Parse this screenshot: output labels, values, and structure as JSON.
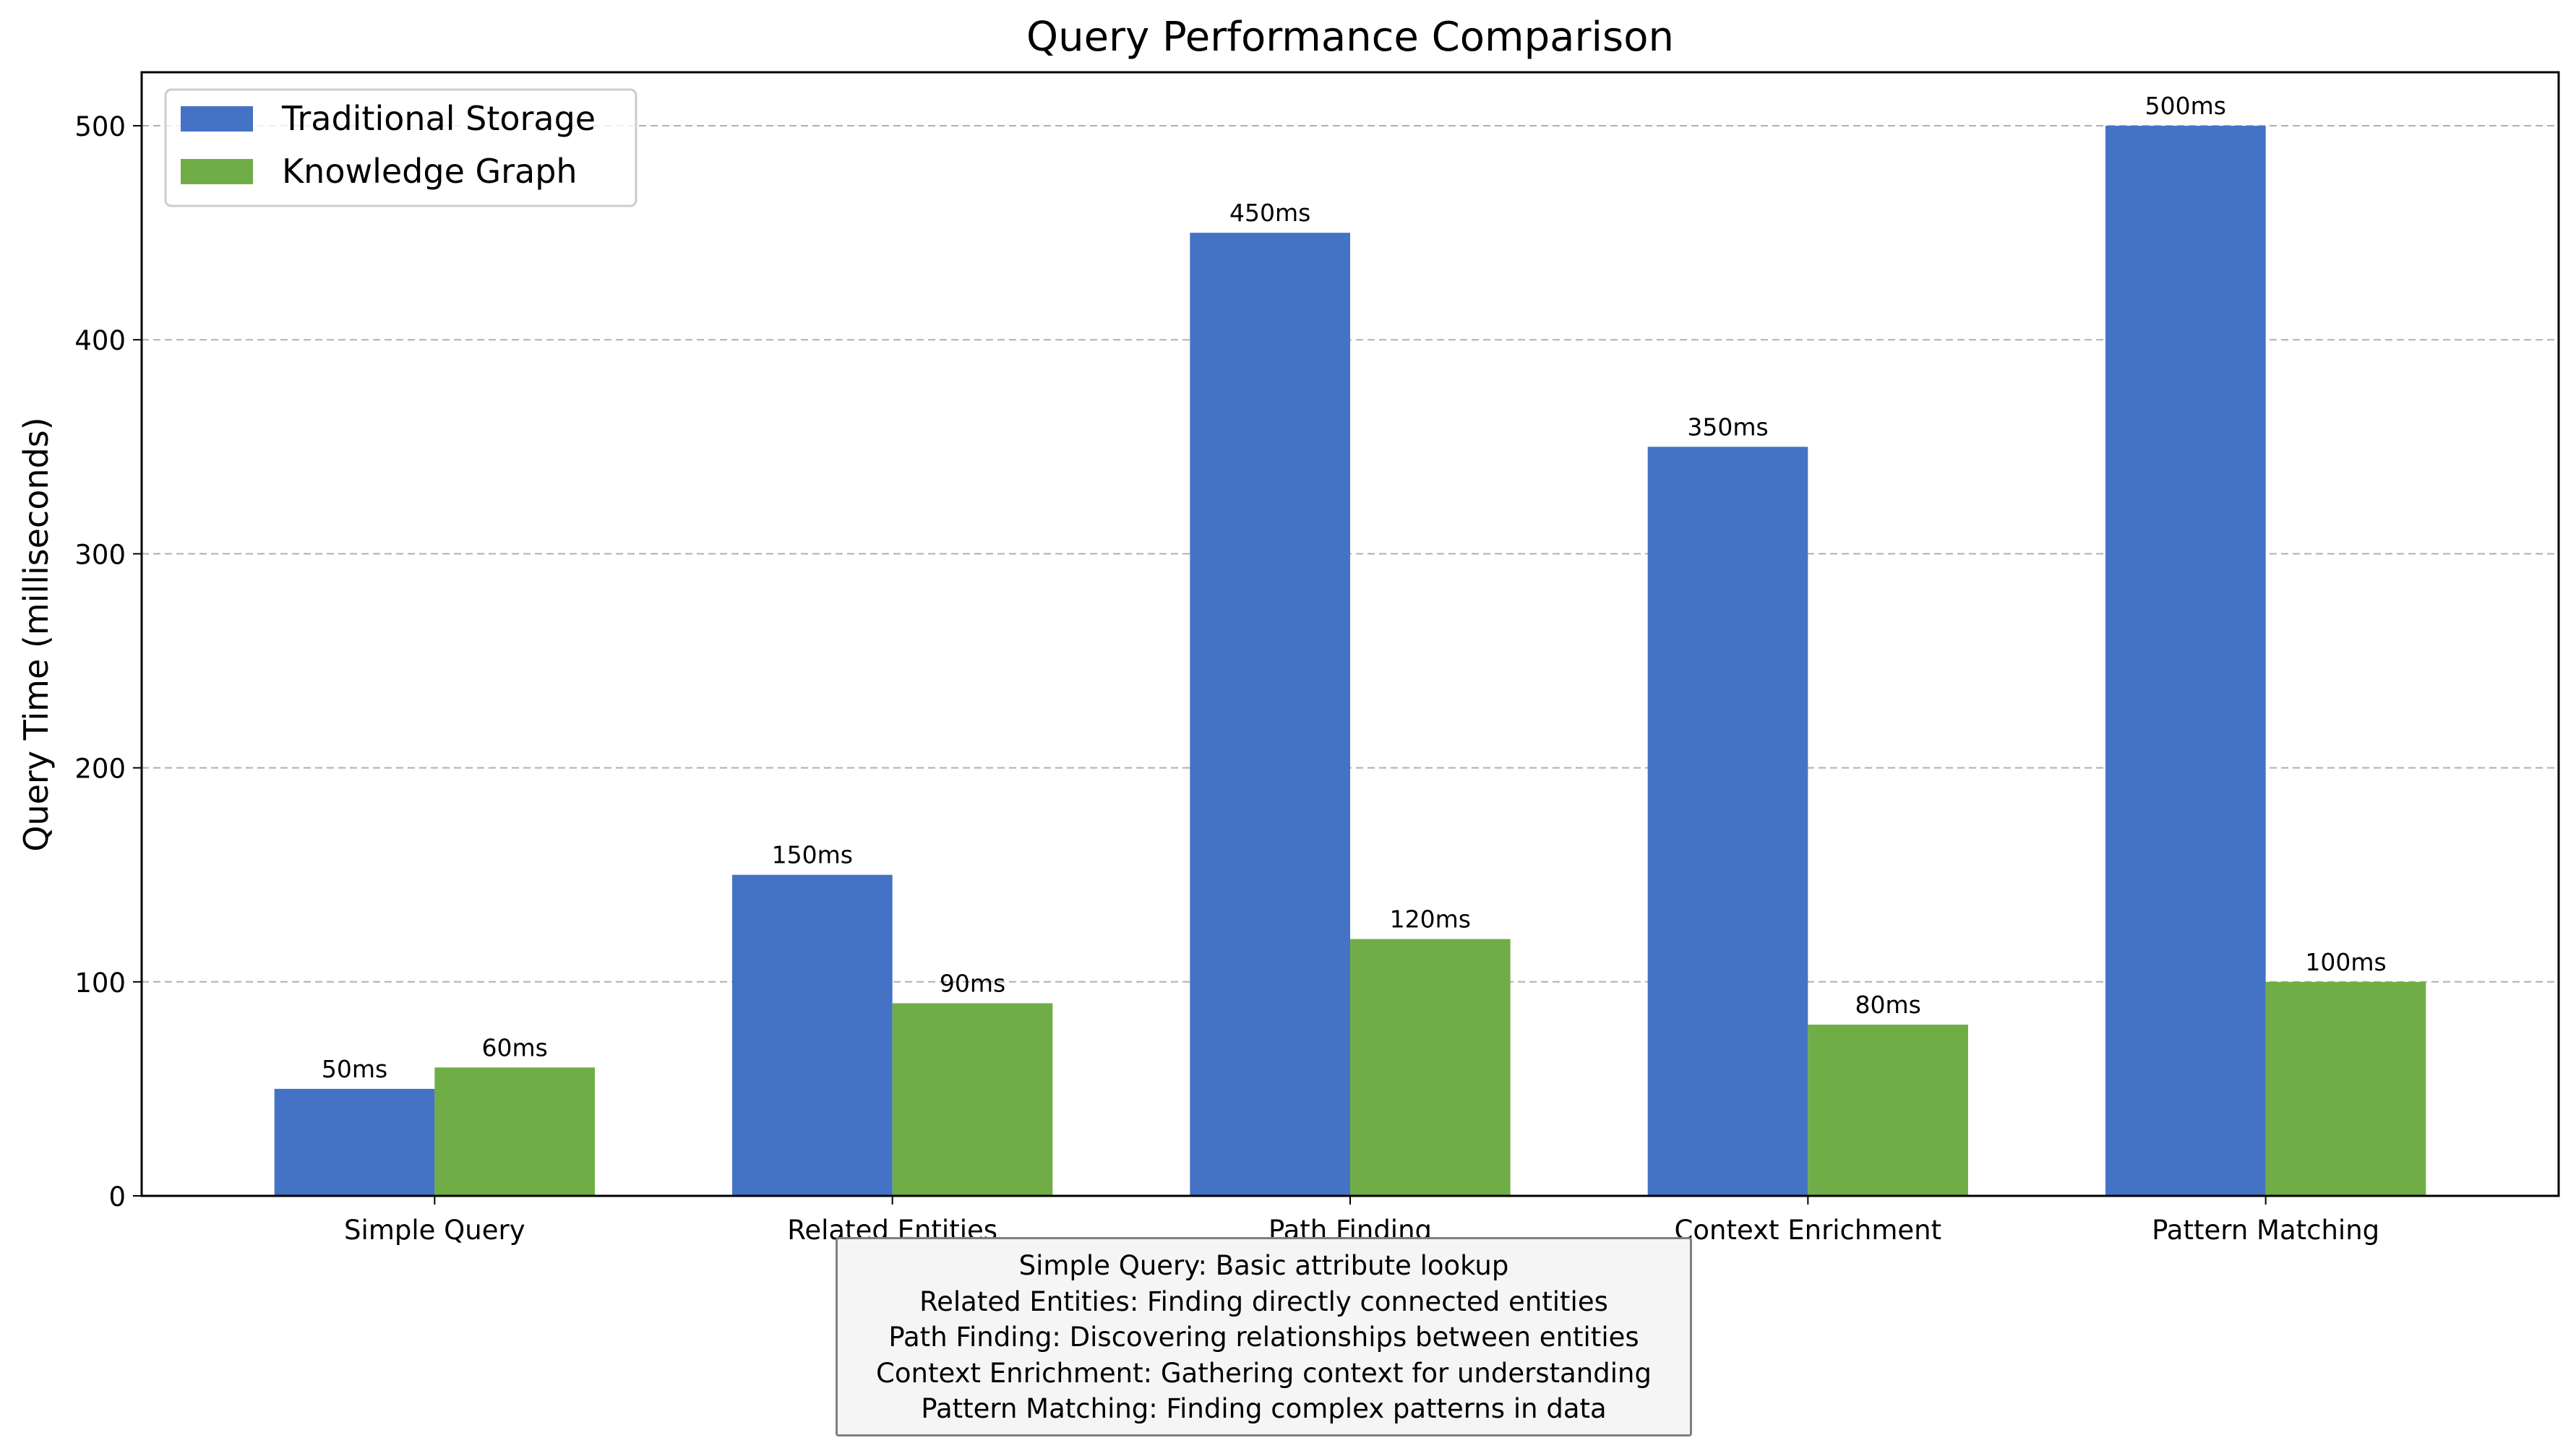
{
  "chart_data": {
    "type": "bar",
    "title": "Query Performance Comparison",
    "xlabel": "",
    "ylabel": "Query Time (milliseconds)",
    "categories": [
      "Simple Query",
      "Related Entities",
      "Path Finding",
      "Context Enrichment",
      "Pattern Matching"
    ],
    "series": [
      {
        "name": "Traditional Storage",
        "color": "#4472c4",
        "values": [
          50,
          150,
          450,
          350,
          500
        ],
        "labels": [
          "50ms",
          "150ms",
          "450ms",
          "350ms",
          "500ms"
        ]
      },
      {
        "name": "Knowledge Graph",
        "color": "#70ad47",
        "values": [
          60,
          90,
          120,
          80,
          100
        ],
        "labels": [
          "60ms",
          "90ms",
          "120ms",
          "80ms",
          "100ms"
        ]
      }
    ],
    "ylim": [
      0,
      525
    ],
    "yticks": [
      0,
      100,
      200,
      300,
      400,
      500
    ],
    "grid": "y-dashed",
    "legend_position": "top-left"
  },
  "descriptions": [
    "Simple Query: Basic attribute lookup",
    "Related Entities: Finding directly connected entities",
    "Path Finding: Discovering relationships between entities",
    "Context Enrichment: Gathering context for understanding",
    "Pattern Matching: Finding complex patterns in data"
  ]
}
